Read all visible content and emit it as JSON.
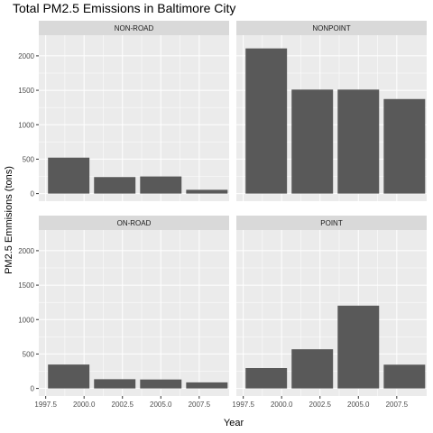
{
  "chart_data": {
    "type": "bar",
    "title": "Total PM2.5 Emissions in Baltimore City",
    "xlabel": "Year",
    "ylabel": "PM2.5 Emmisions (tons)",
    "x_ticks": [
      1997.5,
      2000.0,
      2002.5,
      2005.0,
      2007.5
    ],
    "x_tick_labels": [
      "1997.5",
      "2000.0",
      "2002.5",
      "2005.0",
      "2007.5"
    ],
    "y_ticks": [
      0,
      500,
      1000,
      1500,
      2000
    ],
    "y_tick_labels": [
      "0",
      "500",
      "1000",
      "1500",
      "2000"
    ],
    "xlim": [
      1997.05,
      2009.45
    ],
    "ylim": [
      -110,
      2300
    ],
    "grid": true,
    "facets": [
      {
        "label": "NON-ROAD",
        "years": [
          1999,
          2002,
          2005,
          2008
        ],
        "values": [
          522,
          240,
          249,
          55
        ]
      },
      {
        "label": "NONPOINT",
        "years": [
          1999,
          2002,
          2005,
          2008
        ],
        "values": [
          2108,
          1510,
          1510,
          1373
        ]
      },
      {
        "label": "ON-ROAD",
        "years": [
          1999,
          2002,
          2005,
          2008
        ],
        "values": [
          347,
          134,
          130,
          88
        ]
      },
      {
        "label": "POINT",
        "years": [
          1999,
          2002,
          2005,
          2008
        ],
        "values": [
          296,
          569,
          1202,
          345
        ]
      }
    ],
    "bar_color": "#595959",
    "panel_bg": "#ebebeb",
    "strip_bg": "#d9d9d9",
    "grid_color": "#ffffff"
  }
}
